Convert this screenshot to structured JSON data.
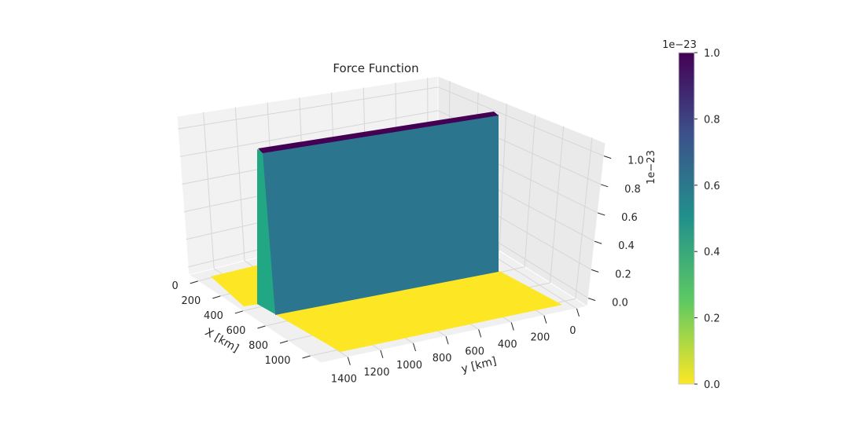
{
  "chart_data": {
    "type": "surface3d",
    "title": "Force Function",
    "xlabel": "X [km]",
    "ylabel": "y [km]",
    "zlabel": "1e−23",
    "x_ticks": [
      "0",
      "200",
      "400",
      "600",
      "800",
      "1000"
    ],
    "y_ticks": [
      "0",
      "200",
      "400",
      "600",
      "800",
      "1000",
      "1200",
      "1400"
    ],
    "z_ticks": [
      "0.0",
      "0.2",
      "0.4",
      "0.6",
      "0.8",
      "1.0"
    ],
    "xlim": [
      0,
      1000
    ],
    "ylim": [
      0,
      1500
    ],
    "zlim": [
      0,
      1.0
    ],
    "z_scale_exponent": -23,
    "grid": true,
    "colormap": "viridis",
    "surface": {
      "base_value": 0.0,
      "plateau_value": 1.0,
      "plateau_x_range": [
        150,
        175
      ],
      "plateau_y_range": [
        0,
        1500
      ]
    },
    "colorbar": {
      "offset_label": "1e−23",
      "ticks": [
        "0.0",
        "0.2",
        "0.4",
        "0.6",
        "0.8",
        "1.0"
      ],
      "range": [
        0,
        1.0
      ],
      "colors": [
        "#fde725",
        "#5ec962",
        "#21918c",
        "#3b528b",
        "#440154"
      ]
    },
    "face_colors": {
      "base": "#fde725",
      "front_wall": "#2b758e",
      "side_wall": "#22a784",
      "top": "#440154"
    }
  }
}
